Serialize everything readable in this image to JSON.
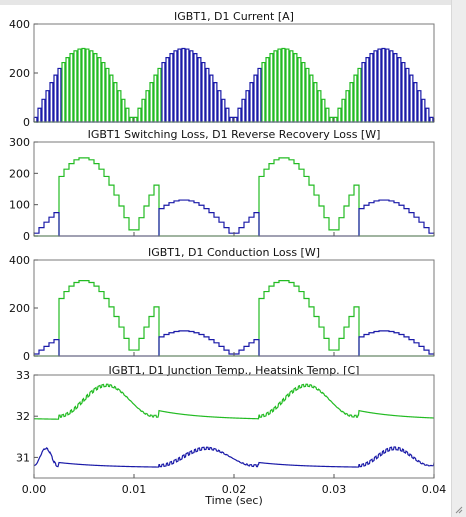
{
  "chart_data": [
    {
      "type": "line",
      "title": "IGBT1, D1 Current [A]",
      "xlim": [
        0,
        0.04
      ],
      "ylim": [
        0,
        400
      ],
      "yticks": [
        0,
        200,
        400
      ],
      "grid": false,
      "signal": "current",
      "series": [
        {
          "color": "#22bb22",
          "peak": 300,
          "shape": "chopped-half-sine",
          "active_windows": [
            [
              0.0025,
              0.0125
            ],
            [
              0.0225,
              0.0325
            ]
          ]
        },
        {
          "color": "#1a1aa8",
          "peak": 300,
          "shape": "chopped-half-sine",
          "active_windows": [
            [
              0.0,
              0.0025
            ],
            [
              0.0125,
              0.0225
            ],
            [
              0.0325,
              0.04
            ]
          ]
        }
      ]
    },
    {
      "type": "line",
      "title": "IGBT1 Switching Loss, D1 Reverse Recovery Loss [W]",
      "xlim": [
        0,
        0.04
      ],
      "ylim": [
        0,
        300
      ],
      "yticks": [
        0,
        100,
        200,
        300
      ],
      "grid": false,
      "signal": "loss",
      "series": [
        {
          "color": "#22bb22",
          "peak": 250,
          "shape": "stepped-half-sine",
          "active_windows": [
            [
              0.0025,
              0.0125
            ],
            [
              0.0225,
              0.0325
            ]
          ]
        },
        {
          "color": "#1a1aa8",
          "peak": 115,
          "shape": "stepped-half-sine",
          "active_windows": [
            [
              0.0,
              0.0025
            ],
            [
              0.0125,
              0.0225
            ],
            [
              0.0325,
              0.04
            ]
          ]
        }
      ]
    },
    {
      "type": "line",
      "title": "IGBT1, D1 Conduction Loss [W]",
      "xlim": [
        0,
        0.04
      ],
      "ylim": [
        0,
        400
      ],
      "yticks": [
        0,
        200,
        400
      ],
      "grid": false,
      "signal": "loss",
      "series": [
        {
          "color": "#22bb22",
          "peak": 315,
          "shape": "stepped-half-sine",
          "active_windows": [
            [
              0.0025,
              0.0125
            ],
            [
              0.0225,
              0.0325
            ]
          ]
        },
        {
          "color": "#1a1aa8",
          "peak": 105,
          "shape": "stepped-half-sine",
          "active_windows": [
            [
              0.0,
              0.0025
            ],
            [
              0.0125,
              0.0225
            ],
            [
              0.0325,
              0.04
            ]
          ]
        }
      ]
    },
    {
      "type": "line",
      "title": "IGBT1, D1 Junction Temp., Heatsink Temp. [C]",
      "xlim": [
        0,
        0.04
      ],
      "ylim": [
        30.5,
        33
      ],
      "yticks": [
        31,
        32,
        33
      ],
      "grid": false,
      "signal": "temperature",
      "series": [
        {
          "color": "#22bb22",
          "base": 32.0,
          "peak": 32.75,
          "shape": "rippled-thermal",
          "active_windows": [
            [
              0.0025,
              0.0125
            ],
            [
              0.0225,
              0.0325
            ]
          ]
        },
        {
          "color": "#1a1aa8",
          "base": 30.8,
          "peak": 31.22,
          "shape": "rippled-thermal",
          "active_windows": [
            [
              0.0,
              0.0025
            ],
            [
              0.0125,
              0.0225
            ],
            [
              0.0325,
              0.04
            ]
          ]
        }
      ]
    }
  ],
  "x_axis": {
    "label": "Time (sec)",
    "ticks": [
      "0.00",
      "0.01",
      "0.02",
      "0.03",
      "0.04"
    ]
  }
}
